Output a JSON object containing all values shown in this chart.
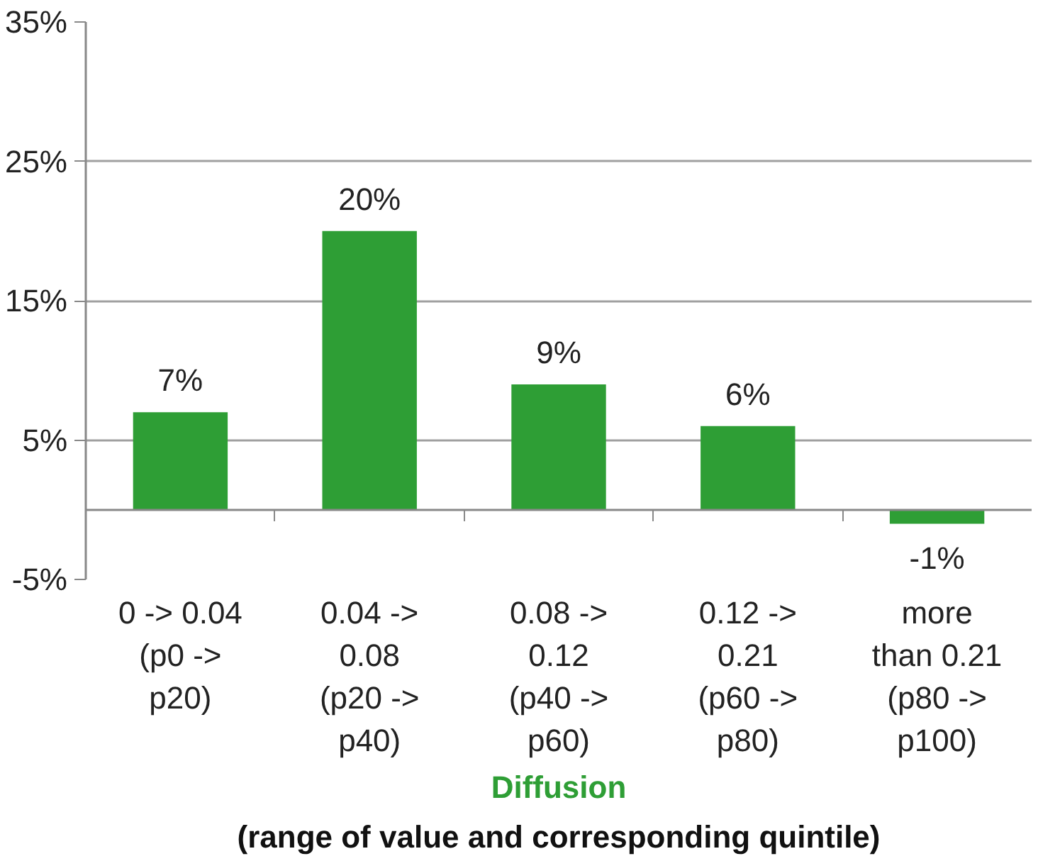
{
  "chart_data": {
    "type": "bar",
    "categories": [
      "0 -> 0.04\n(p0 ->\np20)",
      "0.04 ->\n0.08\n(p20 ->\np40)",
      "0.08 ->\n0.12\n(p40 ->\np60)",
      "0.12 ->\n0.21\n(p60 ->\np80)",
      "more\nthan 0.21\n(p80 ->\np100)"
    ],
    "values": [
      7,
      20,
      9,
      6,
      -1
    ],
    "value_labels": [
      "7%",
      "20%",
      "9%",
      "6%",
      "-1%"
    ],
    "color": "#2e9e35",
    "ylim": [
      -5,
      35
    ],
    "yticks": [
      {
        "value": -5,
        "label": "-5%"
      },
      {
        "value": 5,
        "label": "5%"
      },
      {
        "value": 15,
        "label": "15%"
      },
      {
        "value": 25,
        "label": "25%"
      },
      {
        "value": 35,
        "label": "35%"
      }
    ],
    "grid": "y",
    "xlabel": "Diffusion",
    "annotations": [
      "(range of value and corresponding quintile)"
    ]
  }
}
